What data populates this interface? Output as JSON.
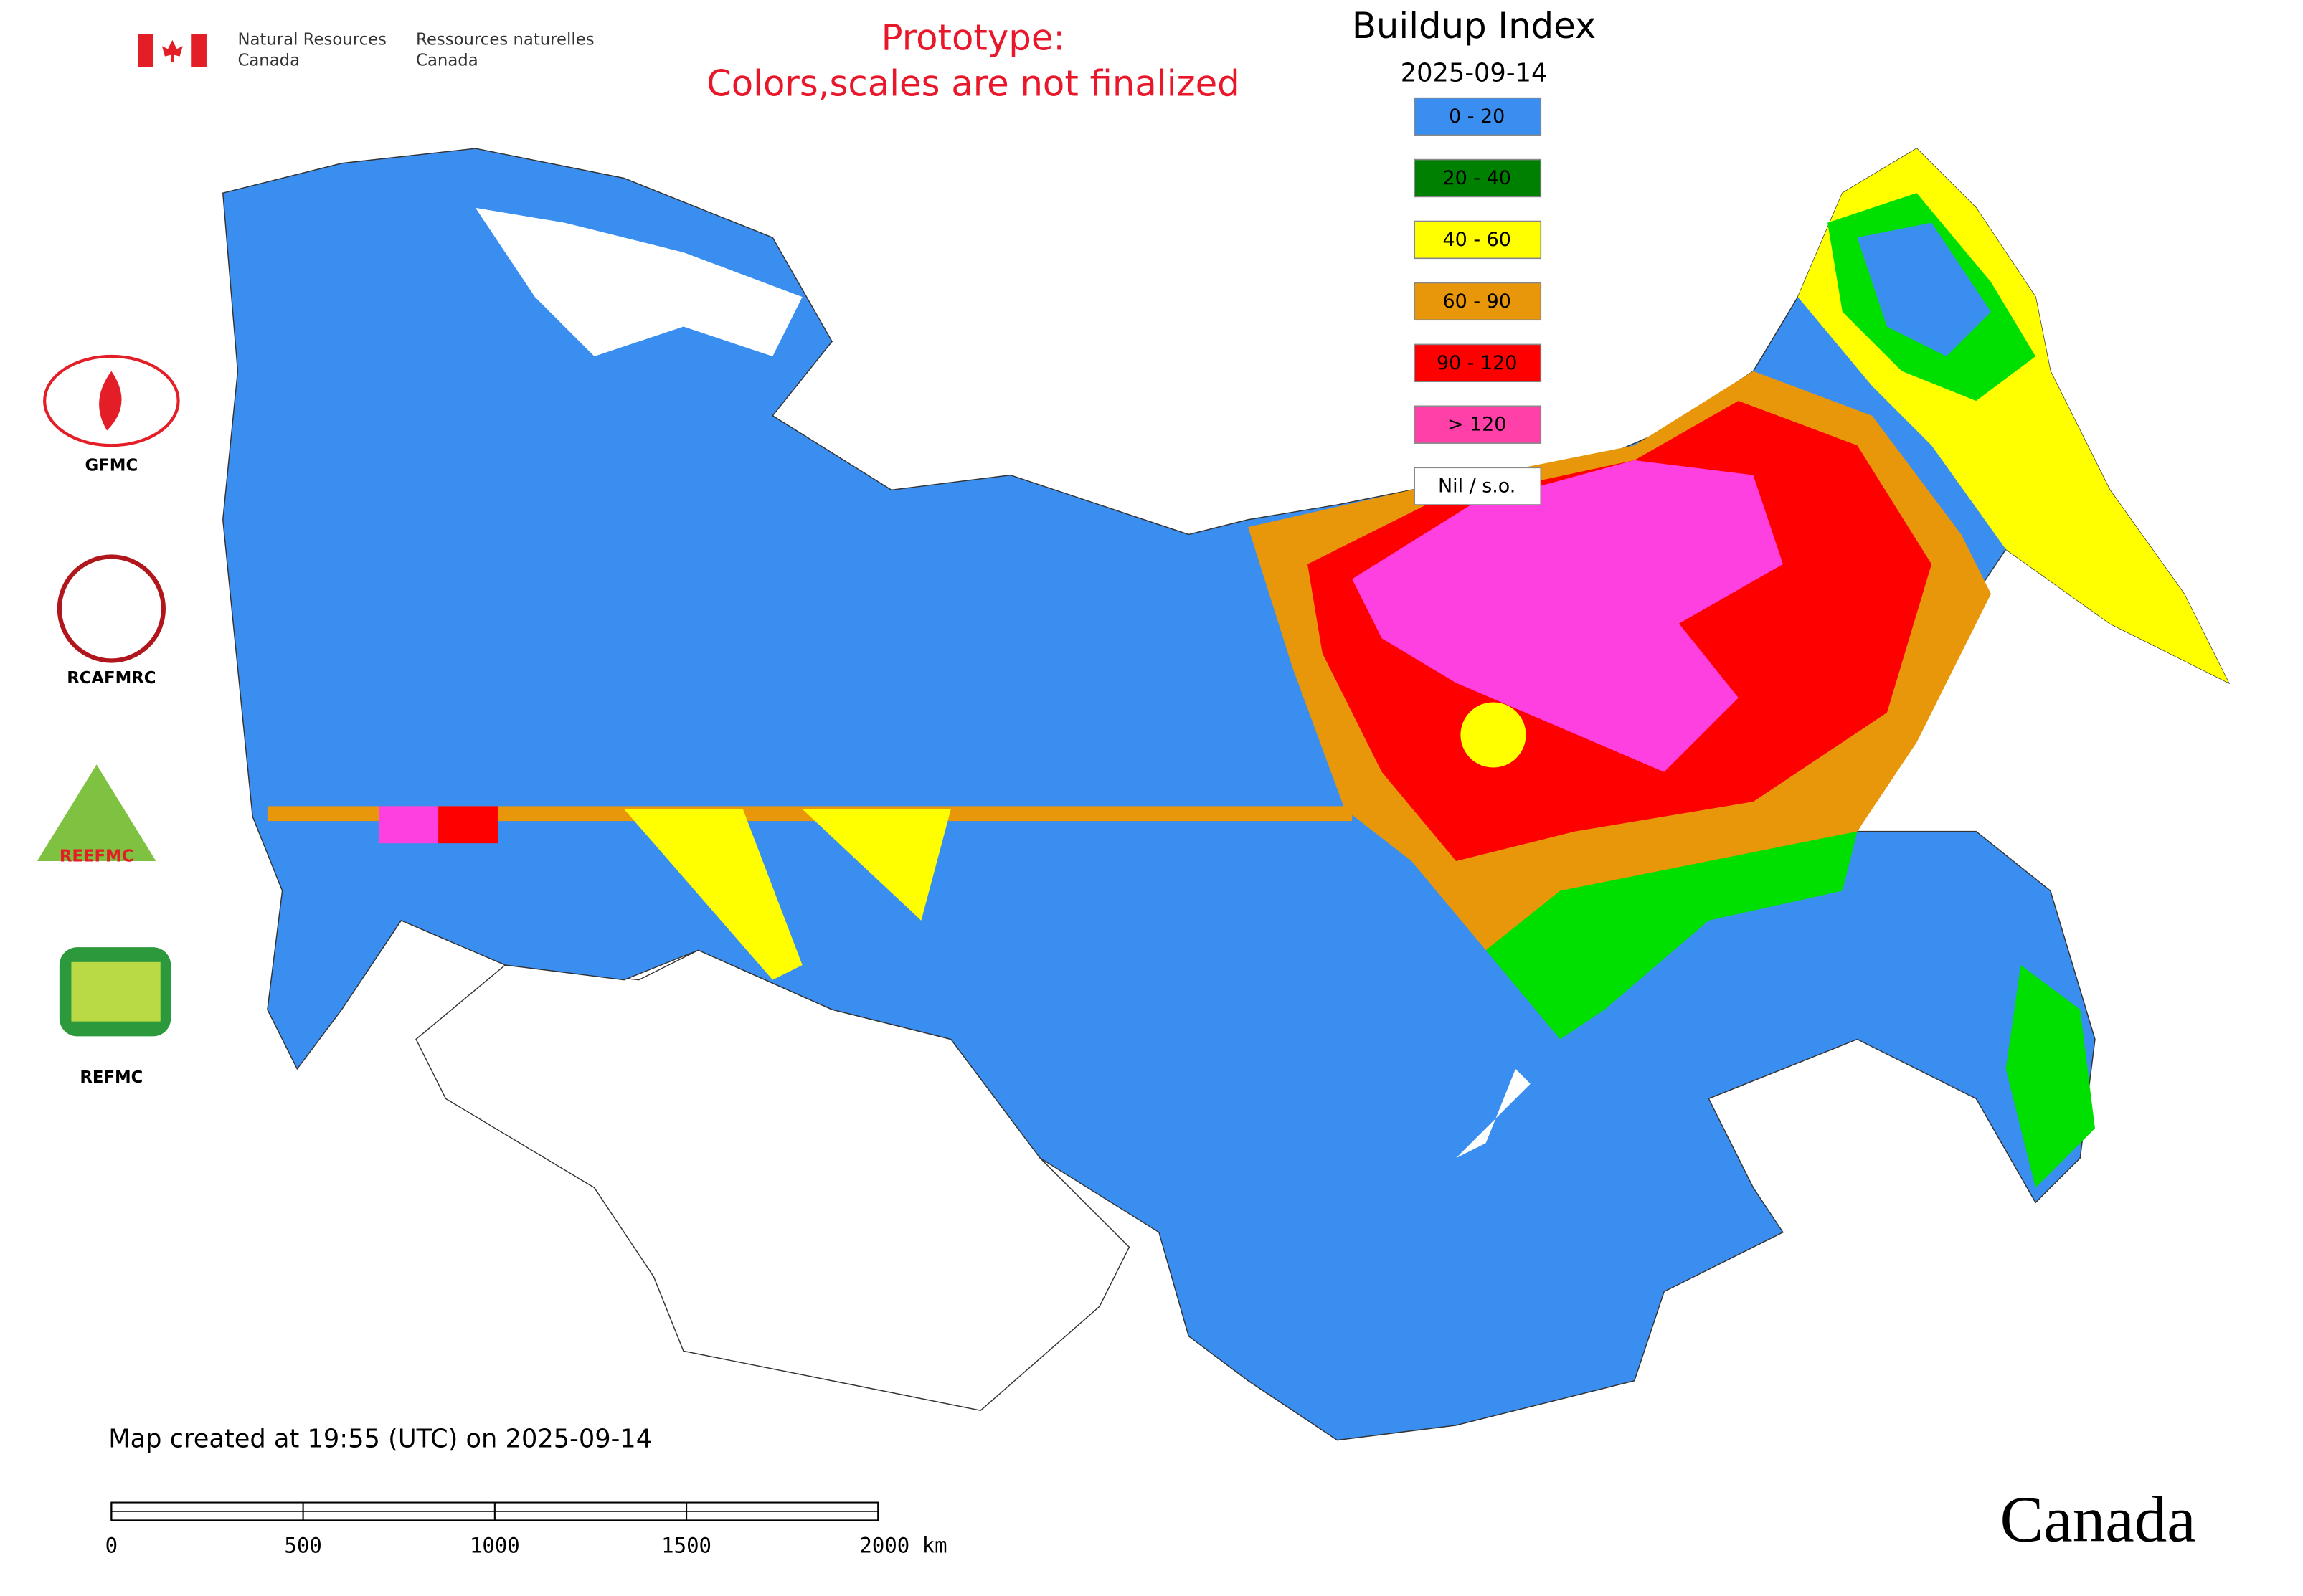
{
  "header": {
    "agency_en": [
      "Natural Resources",
      "Canada"
    ],
    "agency_fr": [
      "Ressources naturelles",
      "Canada"
    ],
    "notice": [
      "Prototype:",
      "Colors,scales are not finalized"
    ]
  },
  "legend": {
    "title": "Buildup Index",
    "date": "2025-09-14",
    "items": [
      {
        "label": "0 - 20",
        "color": "#3a8ef0"
      },
      {
        "label": "20 - 40",
        "color": "#008000"
      },
      {
        "label": "40 - 60",
        "color": "#ffff00"
      },
      {
        "label": "60 - 90",
        "color": "#e8960a"
      },
      {
        "label": "90 - 120",
        "color": "#ff0000"
      },
      {
        "label": "> 120",
        "color": "#ff40a8"
      },
      {
        "label": "Nil / s.o.",
        "color": "#ffffff"
      }
    ]
  },
  "logos": [
    "GFMC",
    "RCAFMRC",
    "REFMC"
  ],
  "footer": {
    "created": "Map created at 19:55 (UTC) on 2025-09-14",
    "scale_labels": [
      "0",
      "500",
      "1000",
      "1500",
      "2000 km"
    ],
    "wordmark": "Canada"
  }
}
